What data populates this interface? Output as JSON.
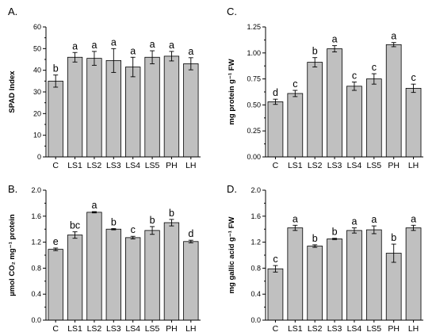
{
  "colors": {
    "bar_fill": "#c0c0c0",
    "bar_stroke": "#000000",
    "axis": "#000000"
  },
  "chart_data": [
    {
      "type": "bar",
      "panel": "A.",
      "ylabel": "SPAD Index",
      "ylim": [
        0,
        60
      ],
      "yticks": [
        0,
        10,
        20,
        30,
        40,
        50,
        60
      ],
      "ytick_labels": [
        "0",
        "10",
        "20",
        "30",
        "40",
        "50",
        "60"
      ],
      "categories": [
        "C",
        "LS1",
        "LS2",
        "LS3",
        "LS4",
        "LS5",
        "PH",
        "LH"
      ],
      "values": [
        35,
        46,
        45.5,
        44.5,
        41.5,
        46,
        46.5,
        43
      ],
      "errors": [
        2.8,
        2.2,
        3.2,
        5.5,
        4.5,
        3.0,
        2.2,
        2.8
      ],
      "letters": [
        "b",
        "a",
        "a",
        "a",
        "a",
        "a",
        "a",
        "a"
      ]
    },
    {
      "type": "bar",
      "panel": "C.",
      "ylabel": "mg protein g⁻¹ FW",
      "ylim": [
        0,
        1.25
      ],
      "yticks": [
        0,
        0.25,
        0.5,
        0.75,
        1.0,
        1.25
      ],
      "ytick_labels": [
        "0.00",
        "0.25",
        "0.50",
        "0.75",
        "1.00",
        "1.25"
      ],
      "categories": [
        "C",
        "LS1",
        "LS2",
        "LS3",
        "LS4",
        "LS5",
        "PH",
        "LH"
      ],
      "values": [
        0.53,
        0.61,
        0.91,
        1.04,
        0.68,
        0.75,
        1.08,
        0.66
      ],
      "errors": [
        0.025,
        0.03,
        0.045,
        0.03,
        0.04,
        0.05,
        0.02,
        0.04
      ],
      "letters": [
        "d",
        "c",
        "b",
        "a",
        "c",
        "c",
        "a",
        "c"
      ]
    },
    {
      "type": "bar",
      "panel": "B.",
      "ylabel": "µmol CO₂ mg⁻¹ protein",
      "ylim": [
        0,
        2.0
      ],
      "yticks": [
        0,
        0.4,
        0.8,
        1.2,
        1.6,
        2.0
      ],
      "ytick_labels": [
        "0.0",
        "0.4",
        "0.8",
        "1.2",
        "1.6",
        "2.0"
      ],
      "categories": [
        "C",
        "LS1",
        "LS2",
        "LS3",
        "LS4",
        "LS5",
        "PH",
        "LH"
      ],
      "values": [
        1.09,
        1.31,
        1.66,
        1.4,
        1.27,
        1.38,
        1.5,
        1.21
      ],
      "errors": [
        0.02,
        0.05,
        0.01,
        0.01,
        0.02,
        0.06,
        0.05,
        0.02
      ],
      "letters": [
        "e",
        "bc",
        "a",
        "b",
        "c",
        "b",
        "b",
        "d"
      ]
    },
    {
      "type": "bar",
      "panel": "D.",
      "ylabel": "mg gallic acid g⁻¹ FW",
      "ylim": [
        0,
        2.0
      ],
      "yticks": [
        0,
        0.4,
        0.8,
        1.2,
        1.6,
        2.0
      ],
      "ytick_labels": [
        "0.0",
        "0.4",
        "0.8",
        "1.2",
        "1.6",
        "2.0"
      ],
      "categories": [
        "C",
        "LS1",
        "LS2",
        "LS3",
        "LS4",
        "LS5",
        "PH",
        "LH"
      ],
      "values": [
        0.79,
        1.42,
        1.14,
        1.25,
        1.38,
        1.39,
        1.03,
        1.42
      ],
      "errors": [
        0.05,
        0.04,
        0.02,
        0.01,
        0.04,
        0.06,
        0.14,
        0.04
      ],
      "letters": [
        "c",
        "a",
        "b",
        "b",
        "a",
        "a",
        "b",
        "a"
      ]
    }
  ]
}
